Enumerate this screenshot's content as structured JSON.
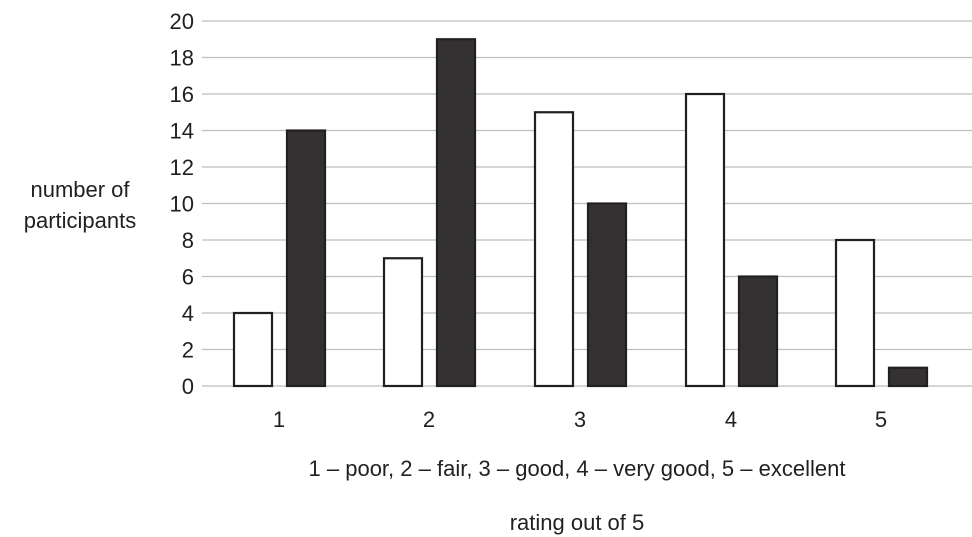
{
  "chart_data": {
    "type": "bar",
    "categories": [
      "1",
      "2",
      "3",
      "4",
      "5"
    ],
    "series": [
      {
        "values": [
          4,
          7,
          15,
          16,
          8
        ],
        "fill": "#ffffff",
        "stroke": "#231f20"
      },
      {
        "values": [
          14,
          19,
          10,
          6,
          1
        ],
        "fill": "#333132",
        "stroke": "#231f20"
      }
    ],
    "title": "",
    "ylabel_lines": [
      "number of",
      "participants"
    ],
    "xlabel": "rating out of 5",
    "annotation": "1 – poor, 2 – fair, 3 – good, 4 – very good, 5 – excellent",
    "ylim": [
      0,
      20
    ],
    "yticks": [
      0,
      2,
      4,
      6,
      8,
      10,
      12,
      14,
      16,
      18,
      20
    ],
    "grid": true,
    "grid_color": "#bcbec0",
    "legend": "none"
  }
}
